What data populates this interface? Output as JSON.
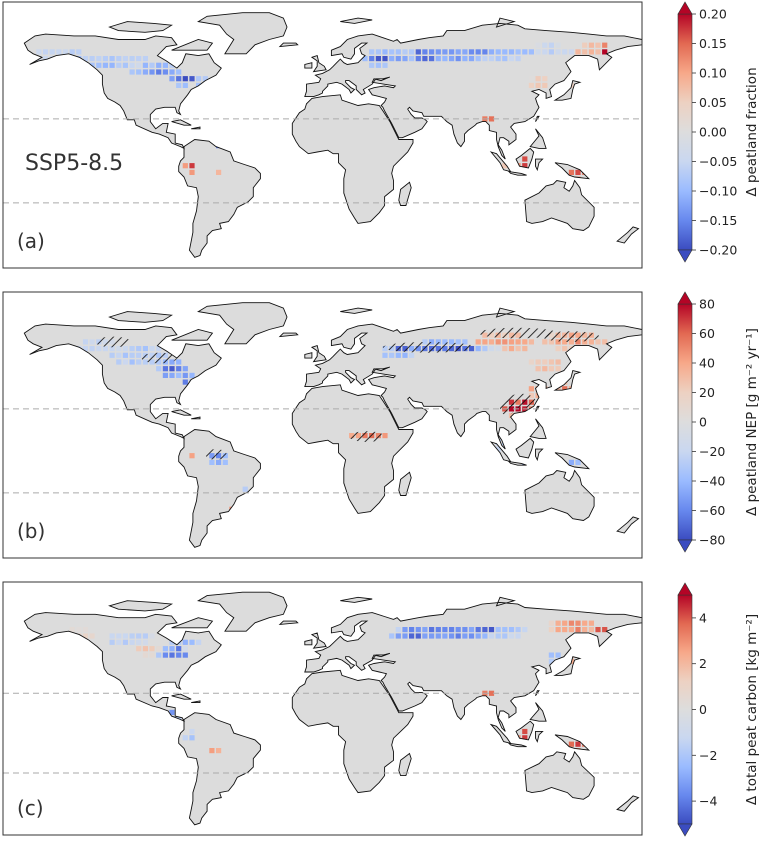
{
  "figure": {
    "scenario_label": "SSP5-8.5",
    "hatching_note": "",
    "panels": [
      {
        "id": "a",
        "label": "(a)",
        "colorbar": {
          "label": "Δ peatland fraction",
          "min": -0.2,
          "max": 0.2,
          "ticks": [
            "−0.20",
            "−0.15",
            "−0.10",
            "−0.05",
            "0.00",
            "0.05",
            "0.10",
            "0.15",
            "0.20"
          ],
          "extend": "both"
        }
      },
      {
        "id": "b",
        "label": "(b)",
        "colorbar": {
          "label": "Δ peatland NEP [g m⁻² yr⁻¹]",
          "min": -80,
          "max": 80,
          "ticks": [
            "−80",
            "−60",
            "−40",
            "−20",
            "0",
            "20",
            "40",
            "60",
            "80"
          ],
          "extend": "both"
        }
      },
      {
        "id": "c",
        "label": "(c)",
        "colorbar": {
          "label": "Δ total peat carbon [kg m⁻²]",
          "min": -5,
          "max": 5,
          "ticks": [
            "−4",
            "−2",
            "0",
            "2",
            "4"
          ],
          "tick_values": [
            -4,
            -2,
            0,
            2,
            4
          ],
          "extend": "both"
        }
      }
    ],
    "colormap": [
      "#3b4cc0",
      "#6788ee",
      "#9abbff",
      "#c9d7f0",
      "#dddddd",
      "#edd1c2",
      "#f7a889",
      "#e26952",
      "#b40426"
    ],
    "land_color": "#dcdcdc",
    "dashed_latitudes": [
      23.5,
      -23.5
    ]
  }
}
